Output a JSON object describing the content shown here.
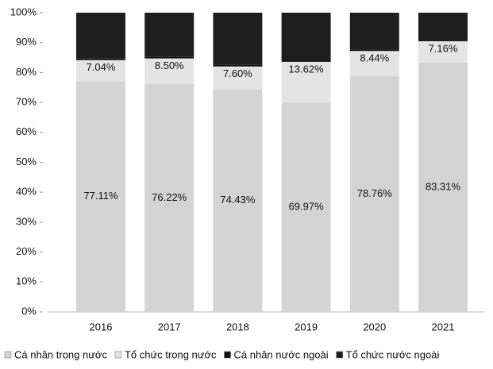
{
  "chart_data": {
    "type": "stacked_bar",
    "categories": [
      "2016",
      "2017",
      "2018",
      "2019",
      "2020",
      "2021"
    ],
    "series": [
      {
        "name": "Cá nhân trong nước",
        "color": "#d4d4d4",
        "values": [
          77.11,
          76.22,
          74.43,
          69.97,
          78.76,
          83.31
        ],
        "value_labels": [
          "77.11%",
          "76.22%",
          "74.43%",
          "69.97%",
          "78.76%",
          "83.31%"
        ]
      },
      {
        "name": "Tổ chức trong nước",
        "color": "#e4e4e4",
        "values": [
          7.04,
          8.5,
          7.6,
          13.62,
          8.44,
          7.16
        ],
        "value_labels": [
          "7.04%",
          "8.50%",
          "7.60%",
          "13.62%",
          "8.44%",
          "7.16%"
        ]
      },
      {
        "name": "Cá nhân nước ngoài",
        "color": "#111111",
        "values": [
          0.5,
          0.5,
          0.5,
          0.5,
          0.5,
          0.5
        ]
      },
      {
        "name": "Tổ chức nước ngoài",
        "color": "#1e1e1e",
        "values": [
          15.35,
          14.78,
          17.47,
          15.91,
          12.3,
          9.03
        ]
      }
    ],
    "ylim": [
      0,
      100
    ],
    "yticks": [
      {
        "value": 0,
        "label": "0%"
      },
      {
        "value": 10,
        "label": "10%"
      },
      {
        "value": 20,
        "label": "20%"
      },
      {
        "value": 30,
        "label": "30%"
      },
      {
        "value": 40,
        "label": "40%"
      },
      {
        "value": 50,
        "label": "50%"
      },
      {
        "value": 60,
        "label": "60%"
      },
      {
        "value": 70,
        "label": "70%"
      },
      {
        "value": 80,
        "label": "80%"
      },
      {
        "value": 90,
        "label": "90%"
      },
      {
        "value": 100,
        "label": "100%"
      }
    ],
    "legend": "bottom"
  }
}
